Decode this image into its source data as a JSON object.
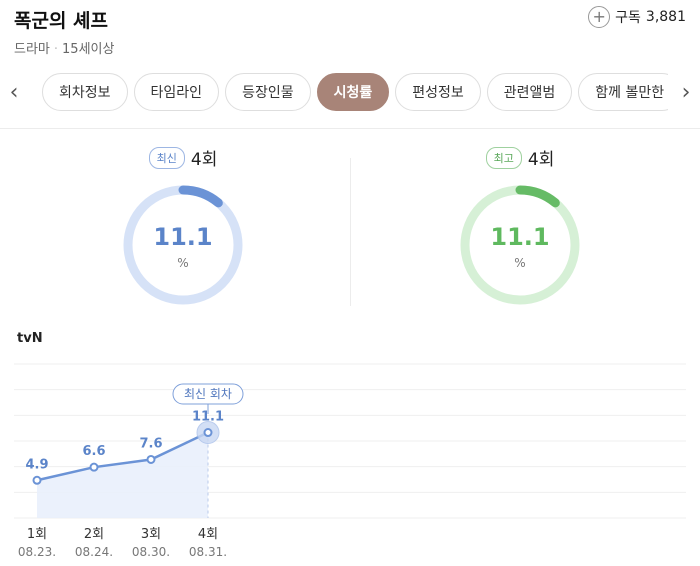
{
  "header": {
    "title": "폭군의 셰프",
    "genre": "드라마",
    "age_rating": "15세이상",
    "subscribe_label": "구독",
    "subscribe_count": "3,881"
  },
  "tabs": [
    {
      "label": "회차정보",
      "active": false
    },
    {
      "label": "타임라인",
      "active": false
    },
    {
      "label": "등장인물",
      "active": false
    },
    {
      "label": "시청률",
      "active": true
    },
    {
      "label": "편성정보",
      "active": false
    },
    {
      "label": "관련앨범",
      "active": false
    },
    {
      "label": "함께 볼만한",
      "active": false
    }
  ],
  "gauges": {
    "latest": {
      "badge": "최신",
      "episode": "4회",
      "value": "11.1",
      "unit": "%",
      "fraction": 0.111,
      "color": "#6b93d6",
      "track_color": "#d6e2f7"
    },
    "highest": {
      "badge": "최고",
      "episode": "4회",
      "value": "11.1",
      "unit": "%",
      "fraction": 0.111,
      "color": "#66bb66",
      "track_color": "#d6f0d6"
    }
  },
  "network": "tvN",
  "chart_data": {
    "type": "line",
    "categories": [
      "1회",
      "2회",
      "3회",
      "4회"
    ],
    "dates": [
      "08.23.",
      "08.24.",
      "08.30.",
      "08.31."
    ],
    "values": [
      4.9,
      6.6,
      7.6,
      11.1
    ],
    "value_labels": [
      "4.9",
      "6.6",
      "7.6",
      "11.1"
    ],
    "latest_callout": "최신 회차",
    "ylim": [
      0,
      20
    ],
    "grid": true,
    "color": "#6b93d6"
  }
}
